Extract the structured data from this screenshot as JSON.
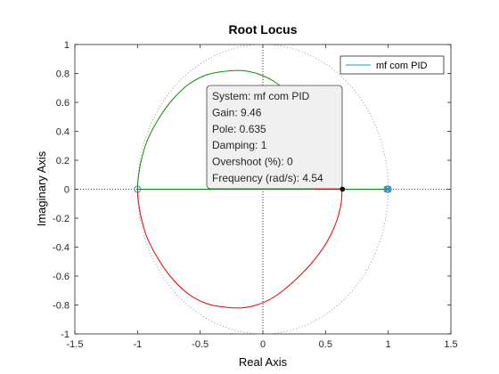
{
  "chart_data": {
    "type": "line",
    "title": "Root Locus",
    "xlabel": "Real Axis",
    "ylabel": "Imaginary Axis",
    "xlim": [
      -1.5,
      1.5
    ],
    "ylim": [
      -1,
      1
    ],
    "xticks": [
      "-1.5",
      "-1",
      "-0.5",
      "0",
      "0.5",
      "1",
      "1.5"
    ],
    "yticks": [
      "-1",
      "-0.8",
      "-0.6",
      "-0.4",
      "-0.2",
      "0",
      "0.2",
      "0.4",
      "0.6",
      "0.8",
      "1"
    ],
    "grid": false,
    "legend_position": "top-right",
    "series": [
      {
        "name": "mf com PID",
        "color": "#4da6d9"
      }
    ],
    "branches": [
      {
        "color": "#0a8a0a",
        "x": [
          1.0,
          0.99,
          0.96,
          0.9,
          0.82,
          0.72,
          0.6,
          0.46,
          0.3,
          0.12,
          -0.05,
          -0.17,
          -0.3,
          -0.45,
          -0.6,
          -0.74,
          -0.86,
          -0.95,
          -0.99,
          -1.0
        ],
        "y": [
          0.0,
          0.0,
          0.0,
          0.0,
          0.0,
          0.0,
          0.0,
          0.0,
          0.0,
          0.0,
          0.0,
          0.0,
          0.0,
          0.0,
          0.0,
          0.0,
          0.0,
          0.0,
          0.0,
          0.0
        ]
      },
      {
        "color": "#0a8a0a",
        "x": [
          0.63,
          0.63,
          0.62,
          0.58,
          0.5,
          0.38,
          0.23,
          0.08,
          -0.05,
          -0.17,
          -0.3,
          -0.45,
          -0.6,
          -0.74,
          -0.85,
          -0.93,
          -0.975,
          -0.995,
          -1.0
        ],
        "y": [
          0.0,
          0.04,
          0.12,
          0.24,
          0.38,
          0.52,
          0.65,
          0.75,
          0.8,
          0.82,
          0.815,
          0.79,
          0.72,
          0.6,
          0.46,
          0.32,
          0.18,
          0.07,
          0.0
        ]
      },
      {
        "color": "#e60000",
        "x": [
          0.63,
          0.63,
          0.62,
          0.58,
          0.5,
          0.38,
          0.23,
          0.08,
          -0.05,
          -0.17,
          -0.3,
          -0.45,
          -0.6,
          -0.74,
          -0.85,
          -0.93,
          -0.975,
          -0.995,
          -1.0
        ],
        "y": [
          0.0,
          -0.04,
          -0.12,
          -0.24,
          -0.38,
          -0.52,
          -0.65,
          -0.75,
          -0.8,
          -0.82,
          -0.815,
          -0.79,
          -0.72,
          -0.6,
          -0.46,
          -0.32,
          -0.18,
          -0.07,
          0.0
        ]
      },
      {
        "color": "#e60000",
        "x": [
          0.4,
          0.5,
          0.6,
          0.63
        ],
        "y": [
          0.0,
          0.0,
          0.0,
          0.0
        ]
      }
    ],
    "zeros": [
      {
        "x": -1.0,
        "y": 0.0
      },
      {
        "x": 1.0,
        "y": 0.0
      },
      {
        "x": 0.99,
        "y": 0.0
      }
    ],
    "poles": [
      {
        "x": 1.0,
        "y": 0.0
      },
      {
        "x": 0.99,
        "y": 0.0
      }
    ],
    "unit_circle": true,
    "datatip": {
      "point": {
        "x": 0.635,
        "y": 0.0
      },
      "lines": [
        "System: mf com PID",
        "Gain: 9.46",
        "Pole: 0.635",
        "Damping: 1",
        "Overshoot (%): 0",
        "Frequency (rad/s): 4.54"
      ]
    }
  }
}
